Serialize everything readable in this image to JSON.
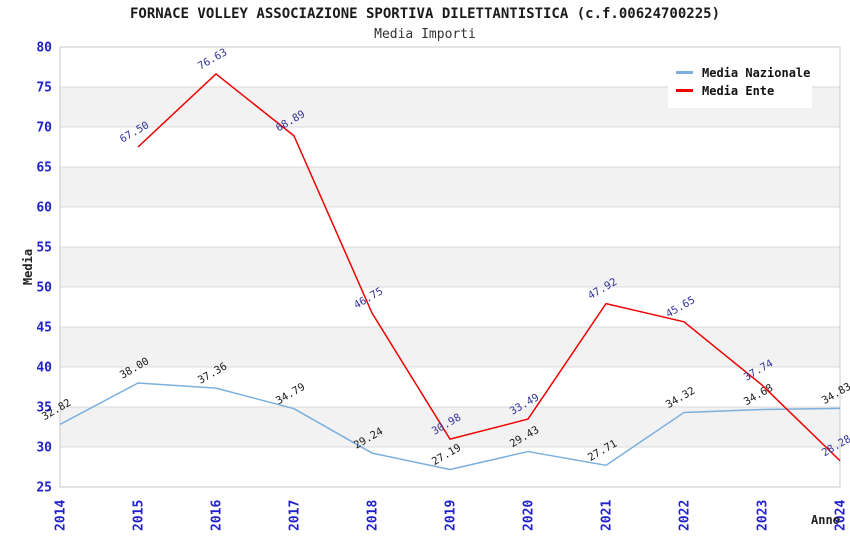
{
  "title": "FORNACE VOLLEY ASSOCIAZIONE SPORTIVA DILETTANTISTICA (c.f.00624700225)",
  "subtitle": "Media Importi",
  "axes": {
    "y_label": "Media",
    "x_label": "Anno",
    "y_ticks": [
      25,
      30,
      35,
      40,
      45,
      50,
      55,
      60,
      65,
      70,
      75,
      80
    ],
    "ylim": [
      25,
      80
    ],
    "tick_color": "#2222cc",
    "grid_color": "#dbdbdb",
    "frame_color": "#c8c8c8",
    "band_color": "#f2f2f2",
    "grid": "on"
  },
  "legend": {
    "position": "top-right",
    "items": [
      {
        "label": "Media Nazionale",
        "color": "#7bafde"
      },
      {
        "label": "Media Ente",
        "color": "#ee0000"
      }
    ]
  },
  "chart_data": {
    "type": "line",
    "title": "Media Importi",
    "xlabel": "Anno",
    "ylabel": "Media",
    "categories": [
      2014,
      2015,
      2016,
      2017,
      2018,
      2019,
      2020,
      2021,
      2022,
      2023,
      2024
    ],
    "ylim": [
      25,
      80
    ],
    "series": [
      {
        "name": "Media Nazionale",
        "color": "#7bafde",
        "label_color": "#1a1a1a",
        "x": [
          2014,
          2015,
          2016,
          2017,
          2018,
          2019,
          2020,
          2021,
          2022,
          2023,
          2024
        ],
        "values": [
          32.82,
          38.0,
          37.36,
          34.79,
          29.24,
          27.19,
          29.43,
          27.71,
          34.32,
          34.68,
          34.83
        ]
      },
      {
        "name": "Media Ente",
        "color": "#ee0000",
        "label_color": "#333399",
        "x": [
          2015,
          2016,
          2017,
          2018,
          2019,
          2020,
          2021,
          2022,
          2023,
          2024
        ],
        "values": [
          67.5,
          76.63,
          68.89,
          46.75,
          30.98,
          33.49,
          47.92,
          45.65,
          37.74,
          28.28
        ]
      }
    ]
  }
}
